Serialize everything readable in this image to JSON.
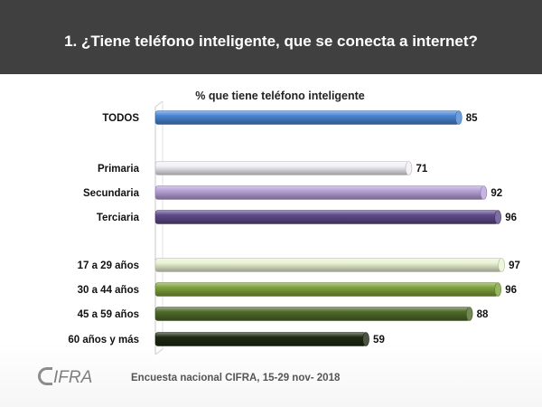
{
  "header": {
    "title": "1. ¿Tiene teléfono inteligente, que se conecta a internet?"
  },
  "footer": {
    "logo_text": "IFRA",
    "source": "Encuesta nacional CIFRA, 15-29 nov- 2018"
  },
  "chart_data": {
    "type": "bar",
    "orientation": "horizontal",
    "title": "% que tiene teléfono inteligente",
    "xlim": [
      0,
      100
    ],
    "grid": false,
    "legend": "none",
    "categories": [
      "TODOS",
      "Primaria",
      "Secundaria",
      "Terciaria",
      "17 a 29 años",
      "30 a 44 años",
      "45 a 59 años",
      "60 años y más"
    ],
    "values": [
      85,
      71,
      92,
      96,
      97,
      96,
      88,
      59
    ],
    "groups": [
      [
        "TODOS"
      ],
      [
        "Primaria",
        "Secundaria",
        "Terciaria"
      ],
      [
        "17 a 29 años",
        "30 a 44 años",
        "45 a 59 años",
        "60 años y más"
      ]
    ],
    "colors": [
      "#4a86d4",
      "#f2f0f6",
      "#b7a2d8",
      "#5e4a8a",
      "#eaf3d4",
      "#7ea23c",
      "#4f6a2a",
      "#1f2a12"
    ]
  }
}
